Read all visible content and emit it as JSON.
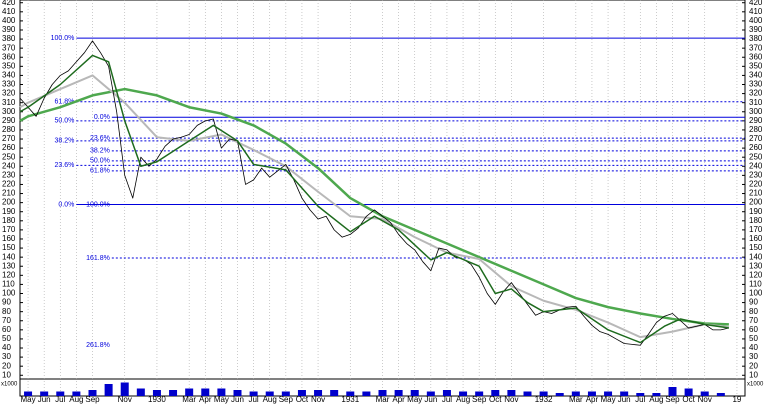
{
  "chart_data": {
    "type": "line",
    "xlim": [
      1.5,
      46.5
    ],
    "ylim": [
      7,
      423
    ],
    "yticks": [
      10,
      20,
      30,
      40,
      50,
      60,
      70,
      80,
      90,
      100,
      110,
      120,
      130,
      140,
      150,
      160,
      170,
      180,
      190,
      200,
      210,
      220,
      230,
      240,
      250,
      260,
      270,
      280,
      290,
      300,
      310,
      320,
      330,
      340,
      350,
      360,
      370,
      380,
      390,
      400,
      410,
      420
    ],
    "xticks": [
      {
        "value": 2,
        "label": "May"
      },
      {
        "value": 3,
        "label": "Jun"
      },
      {
        "value": 4,
        "label": "Jul"
      },
      {
        "value": 5,
        "label": "Aug"
      },
      {
        "value": 6,
        "label": "Sep"
      },
      {
        "value": 8,
        "label": "Nov"
      },
      {
        "value": 10,
        "label": "1930"
      },
      {
        "value": 12,
        "label": "Mar"
      },
      {
        "value": 13,
        "label": "Apr"
      },
      {
        "value": 14,
        "label": "May"
      },
      {
        "value": 15,
        "label": "Jun"
      },
      {
        "value": 16,
        "label": "Jul"
      },
      {
        "value": 17,
        "label": "Aug"
      },
      {
        "value": 18,
        "label": "Sep"
      },
      {
        "value": 19,
        "label": "Oct"
      },
      {
        "value": 20,
        "label": "Nov"
      },
      {
        "value": 22,
        "label": "1931"
      },
      {
        "value": 24,
        "label": "Mar"
      },
      {
        "value": 25,
        "label": "Apr"
      },
      {
        "value": 26,
        "label": "May"
      },
      {
        "value": 27,
        "label": "Jun"
      },
      {
        "value": 28,
        "label": "Jul"
      },
      {
        "value": 29,
        "label": "Aug"
      },
      {
        "value": 30,
        "label": "Sep"
      },
      {
        "value": 31,
        "label": "Oct"
      },
      {
        "value": 32,
        "label": "Nov"
      },
      {
        "value": 34,
        "label": "1932"
      },
      {
        "value": 36,
        "label": "Mar"
      },
      {
        "value": 37,
        "label": "Apr"
      },
      {
        "value": 38,
        "label": "May"
      },
      {
        "value": 39,
        "label": "Jun"
      },
      {
        "value": 40,
        "label": "Jul"
      },
      {
        "value": 41,
        "label": "Aug"
      },
      {
        "value": 42,
        "label": "Sep"
      },
      {
        "value": 43,
        "label": "Oct"
      },
      {
        "value": 44,
        "label": "Nov"
      },
      {
        "value": 46,
        "label": "19"
      }
    ],
    "grid": true,
    "series": [
      {
        "color": "#4ea84e",
        "width": 2.5,
        "x": [
          1.5,
          2,
          4,
          6,
          8,
          10,
          12,
          14,
          16,
          18,
          20,
          22,
          24,
          26,
          28,
          30,
          32,
          34,
          36,
          38,
          40,
          42,
          44,
          45.5
        ],
        "values": [
          290,
          295,
          305,
          318,
          325,
          318,
          305,
          298,
          285,
          265,
          238,
          205,
          185,
          170,
          155,
          140,
          125,
          110,
          95,
          85,
          78,
          72,
          67,
          66
        ]
      },
      {
        "color": "#b8b8b8",
        "width": 2,
        "x": [
          1.5,
          2,
          4,
          6,
          8,
          10,
          12,
          14,
          16,
          18,
          20,
          22,
          24,
          26,
          28,
          30,
          32,
          34,
          36,
          38,
          40,
          42,
          44,
          45.5
        ],
        "values": [
          305,
          310,
          325,
          340,
          310,
          272,
          268,
          275,
          258,
          240,
          212,
          185,
          182,
          162,
          145,
          138,
          108,
          92,
          82,
          68,
          52,
          58,
          66,
          63
        ]
      },
      {
        "color": "#000000",
        "width": 0.8,
        "x": [
          1.5,
          2,
          2.5,
          3,
          3.5,
          4,
          4.5,
          5,
          5.5,
          6,
          6.5,
          7,
          7.5,
          8,
          8.5,
          9,
          9.5,
          10,
          10.5,
          11,
          11.5,
          12,
          12.5,
          13,
          13.5,
          14,
          14.5,
          15,
          15.5,
          16,
          16.5,
          17,
          17.5,
          18,
          18.5,
          19,
          19.5,
          20,
          20.5,
          21,
          21.5,
          22,
          22.5,
          23,
          23.5,
          24,
          24.5,
          25,
          25.5,
          26,
          26.5,
          27,
          27.5,
          28,
          28.5,
          29,
          29.5,
          30,
          30.5,
          31,
          31.5,
          32,
          32.5,
          33,
          33.5,
          34,
          34.5,
          35,
          35.5,
          36,
          36.5,
          37,
          37.5,
          38,
          38.5,
          39,
          39.5,
          40,
          40.5,
          41,
          41.5,
          42,
          42.5,
          43,
          43.5,
          44,
          44.5,
          45,
          45.5
        ],
        "values": [
          315,
          305,
          295,
          315,
          330,
          340,
          345,
          355,
          365,
          378,
          365,
          350,
          300,
          230,
          205,
          250,
          240,
          248,
          262,
          270,
          272,
          275,
          285,
          290,
          292,
          260,
          270,
          268,
          220,
          225,
          238,
          228,
          235,
          242,
          225,
          205,
          192,
          182,
          185,
          170,
          162,
          165,
          172,
          185,
          192,
          185,
          178,
          165,
          155,
          148,
          135,
          125,
          150,
          148,
          140,
          138,
          132,
          118,
          100,
          88,
          102,
          112,
          100,
          88,
          76,
          80,
          78,
          82,
          85,
          86,
          75,
          65,
          58,
          55,
          50,
          45,
          44,
          43,
          55,
          68,
          75,
          78,
          70,
          62,
          64,
          66,
          60,
          60,
          62
        ]
      },
      {
        "color": "#1e6b1e",
        "width": 1.5,
        "x": [
          1.5,
          2,
          4,
          6,
          7,
          8,
          9,
          10,
          12,
          13.5,
          15,
          16,
          18,
          20,
          22,
          23.5,
          25,
          27,
          28,
          30,
          31,
          32,
          33,
          34,
          36,
          38,
          40,
          41.5,
          42.5,
          44,
          45.5
        ],
        "values": [
          300,
          305,
          330,
          362,
          355,
          290,
          240,
          245,
          268,
          285,
          268,
          242,
          236,
          196,
          168,
          185,
          170,
          137,
          145,
          130,
          100,
          105,
          90,
          80,
          84,
          60,
          46,
          64,
          72,
          66,
          62
        ]
      }
    ],
    "fib_levels": [
      {
        "label": "100.0%",
        "value": 381,
        "from": 5,
        "style": "solid"
      },
      {
        "label": "61.8%",
        "value": 311,
        "from": 5,
        "style": "dashed"
      },
      {
        "label": "50.0%",
        "value": 290,
        "from": 5,
        "style": "dashed"
      },
      {
        "label": "38.2%",
        "value": 268,
        "from": 5,
        "style": "dashed"
      },
      {
        "label": "23.6%",
        "value": 241,
        "from": 5,
        "style": "dashed"
      },
      {
        "label": "0.0%",
        "value": 198,
        "from": 5,
        "style": "solid"
      },
      {
        "label": "0.0%",
        "value": 294,
        "from": 7.2,
        "style": "solid"
      },
      {
        "label": "23.6%",
        "value": 271,
        "from": 7.2,
        "style": "dashed"
      },
      {
        "label": "38.2%",
        "value": 257,
        "from": 7.2,
        "style": "dashed"
      },
      {
        "label": "50.0%",
        "value": 246,
        "from": 7.2,
        "style": "dashed"
      },
      {
        "label": "61.8%",
        "value": 235,
        "from": 7.2,
        "style": "dashed"
      },
      {
        "label": "100.0%",
        "value": 198,
        "from": 7.2,
        "style": "solid"
      },
      {
        "label": "161.8%",
        "value": 139,
        "from": 7.2,
        "style": "dashed"
      },
      {
        "label": "261.8%",
        "value": 43,
        "from": 7.2,
        "style": "none"
      }
    ],
    "fib_color": "#0000dd",
    "volume": {
      "unit_label": "x1000",
      "color": "#0000cc",
      "ylim": [
        0,
        10
      ],
      "x": [
        2,
        3,
        4,
        5,
        6,
        7,
        8,
        9,
        10,
        11,
        12,
        13,
        14,
        15,
        16,
        17,
        18,
        19,
        20,
        21,
        22,
        23,
        24,
        25,
        26,
        27,
        28,
        29,
        30,
        31,
        32,
        33,
        34,
        35,
        36,
        37,
        38,
        39,
        40,
        41,
        42,
        43,
        44,
        45
      ],
      "values": [
        3,
        3,
        3,
        3,
        4,
        8,
        9,
        5,
        4,
        4,
        5,
        5,
        5,
        4,
        3,
        3,
        3,
        4,
        4,
        4,
        3,
        3,
        4,
        4,
        4,
        3,
        4,
        3,
        3,
        4,
        4,
        3,
        3,
        2,
        3,
        3,
        3,
        3,
        2,
        2,
        6,
        5,
        3,
        2
      ]
    }
  }
}
